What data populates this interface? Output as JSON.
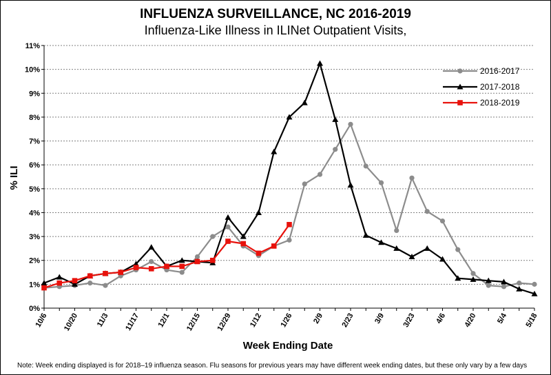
{
  "title": "INFLUENZA SURVEILLANCE, NC 2016-2019",
  "subtitle": "Influenza-Like Illness in ILINet Outpatient Visits,",
  "note": "Note:  Week ending displayed is for 2018–19 influenza season. Flu seasons for previous years may have different week ending dates, but these only vary by a few days",
  "chart_data": {
    "type": "line",
    "xlabel": "Week Ending Date",
    "ylabel": "% ILI",
    "ylim": [
      0,
      11
    ],
    "yticks": [
      "0%",
      "1%",
      "2%",
      "3%",
      "4%",
      "5%",
      "6%",
      "7%",
      "8%",
      "9%",
      "10%",
      "11%"
    ],
    "x_tick_labels": [
      "10/6",
      "10/20",
      "11/3",
      "11/17",
      "12/1",
      "12/15",
      "12/29",
      "1/12",
      "1/26",
      "2/9",
      "2/23",
      "3/9",
      "3/23",
      "4/6",
      "4/20",
      "5/4",
      "5/18"
    ],
    "n_weeks": 33,
    "grid": "horizontal dashed",
    "legend_position": "top-right",
    "series": [
      {
        "name": "2016-2017",
        "color": "#8c8c8c",
        "marker": "circle",
        "values": [
          0.85,
          0.9,
          0.95,
          1.05,
          0.95,
          1.35,
          1.6,
          1.95,
          1.6,
          1.5,
          2.15,
          3.0,
          3.4,
          2.6,
          2.2,
          2.6,
          2.85,
          5.2,
          5.6,
          6.65,
          7.7,
          5.95,
          5.25,
          3.25,
          5.45,
          4.05,
          3.65,
          2.45,
          1.45,
          0.95,
          0.9,
          1.05,
          1.0
        ]
      },
      {
        "name": "2017-2018",
        "color": "#000000",
        "marker": "triangle",
        "values": [
          1.05,
          1.3,
          1.0,
          1.35,
          1.45,
          1.5,
          1.85,
          2.55,
          1.75,
          2.0,
          1.95,
          1.9,
          3.8,
          3.0,
          4.0,
          6.55,
          8.0,
          8.6,
          10.25,
          7.9,
          5.15,
          3.05,
          2.75,
          2.5,
          2.15,
          2.5,
          2.05,
          1.25,
          1.2,
          1.15,
          1.1,
          0.8,
          0.6
        ]
      },
      {
        "name": "2018-2019",
        "color": "#e8120c",
        "marker": "square",
        "values": [
          0.85,
          1.05,
          1.15,
          1.35,
          1.45,
          1.5,
          1.7,
          1.65,
          1.75,
          1.75,
          1.95,
          2.0,
          2.8,
          2.7,
          2.3,
          2.6,
          3.5
        ]
      }
    ]
  }
}
